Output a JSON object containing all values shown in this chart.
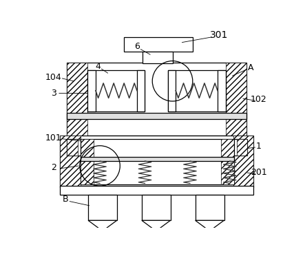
{
  "bg_color": "#ffffff",
  "figsize": [
    4.43,
    3.72
  ],
  "dpi": 100,
  "lw": 0.8
}
